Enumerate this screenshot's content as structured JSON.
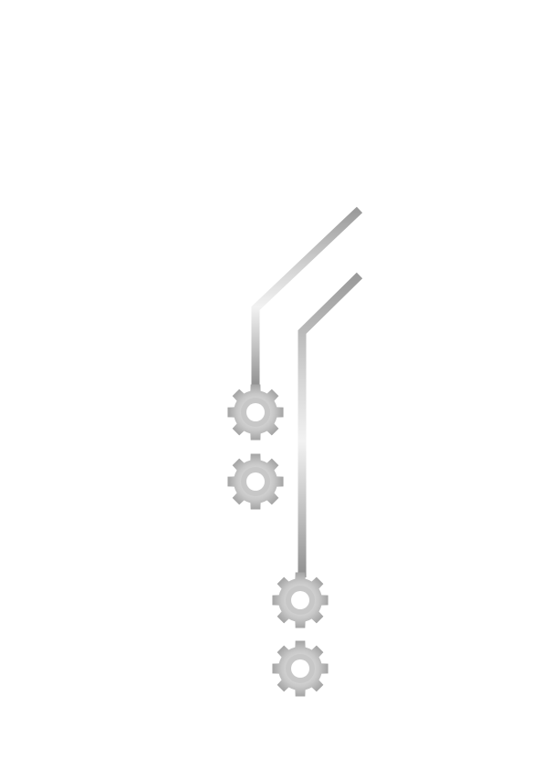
{
  "colors": {
    "background": "#ffffff",
    "metal_light": "#f2f2f2",
    "metal_mid": "#c7c7c7",
    "metal_dark": "#9a9a9a",
    "gear_hole": "#ffffff"
  },
  "graphic": {
    "traces": [
      {
        "name": "trace-left"
      },
      {
        "name": "trace-right"
      }
    ],
    "gears": [
      {
        "name": "gear-icon-1",
        "icon": "gear-icon"
      },
      {
        "name": "gear-icon-2",
        "icon": "gear-icon"
      },
      {
        "name": "gear-icon-3",
        "icon": "gear-icon"
      },
      {
        "name": "gear-icon-4",
        "icon": "gear-icon"
      }
    ]
  }
}
